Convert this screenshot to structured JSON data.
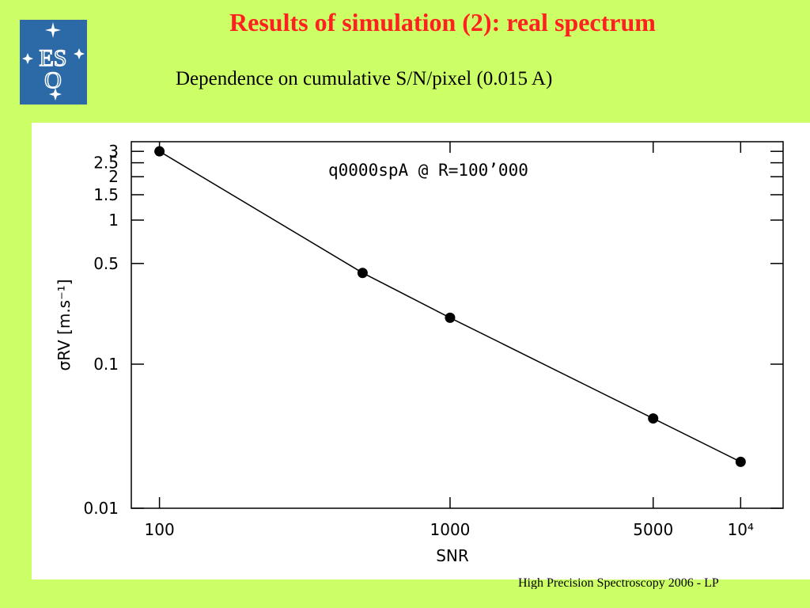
{
  "slide": {
    "title": "Results of simulation (2): real spectrum",
    "subtitle": "Dependence on cumulative S/N/pixel (0.015 A)",
    "footer": "High Precision Spectroscopy 2006 - LP",
    "logo_text": "ESO",
    "colors": {
      "background": "#ccff66",
      "title": "#ff2020",
      "logo": "#2b6aa6"
    }
  },
  "chart_data": {
    "type": "line",
    "title": "q0000spA @ R=100’000",
    "xlabel": "SNR",
    "ylabel": "σRV [m.s⁻¹]",
    "xscale": "log",
    "yscale": "log",
    "xlim": [
      80,
      14000
    ],
    "ylim": [
      0.01,
      3.5
    ],
    "x_ticks": [
      {
        "value": 100,
        "label": "100"
      },
      {
        "value": 1000,
        "label": "1000"
      },
      {
        "value": 5000,
        "label": "5000"
      },
      {
        "value": 10000,
        "label": "10⁴"
      }
    ],
    "y_ticks": [
      {
        "value": 0.01,
        "label": "0.01"
      },
      {
        "value": 0.1,
        "label": "0.1"
      },
      {
        "value": 0.5,
        "label": "0.5"
      },
      {
        "value": 1,
        "label": "1"
      },
      {
        "value": 1.5,
        "label": "1.5"
      },
      {
        "value": 2,
        "label": "2"
      },
      {
        "value": 2.5,
        "label": "2.5"
      },
      {
        "value": 3,
        "label": "3"
      }
    ],
    "series": [
      {
        "x": [
          100,
          500,
          1000,
          5000,
          10000
        ],
        "y": [
          3.0,
          0.43,
          0.21,
          0.042,
          0.021
        ]
      }
    ],
    "grid": false
  }
}
